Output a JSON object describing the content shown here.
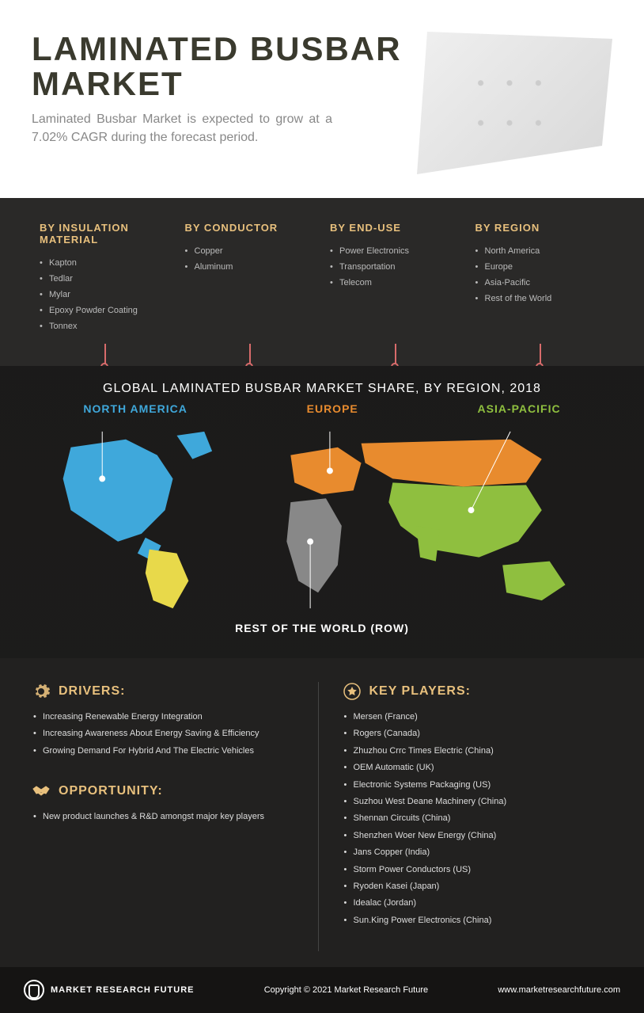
{
  "header": {
    "title_line1": "LAMINATED BUSBAR",
    "title_line2": "MARKET",
    "subtitle": "Laminated Busbar Market is expected to grow at a 7.02% CAGR during the forecast period."
  },
  "categories": [
    {
      "title": "BY INSULATION MATERIAL",
      "items": [
        "Kapton",
        "Tedlar",
        "Mylar",
        "Epoxy Powder Coating",
        "Tonnex"
      ]
    },
    {
      "title": "BY CONDUCTOR",
      "items": [
        "Copper",
        "Aluminum"
      ]
    },
    {
      "title": "BY END-USE",
      "items": [
        "Power Electronics",
        "Transportation",
        "Telecom"
      ]
    },
    {
      "title": "BY REGION",
      "items": [
        "North America",
        "Europe",
        "Asia-Pacific",
        "Rest of the World"
      ]
    }
  ],
  "map": {
    "title": "GLOBAL LAMINATED BUSBAR MARKET SHARE, BY REGION, 2018",
    "regions": {
      "na": {
        "label": "NORTH AMERICA",
        "color": "#3fa8db"
      },
      "eu": {
        "label": "EUROPE",
        "color": "#e88b2e"
      },
      "ap": {
        "label": "ASIA-PACIFIC",
        "color": "#8fbf3f"
      },
      "row": {
        "label": "REST OF THE WORLD (ROW)",
        "color": "#e8d94a"
      }
    }
  },
  "drivers": {
    "title": "DRIVERS:",
    "items": [
      "Increasing Renewable Energy Integration",
      "Increasing Awareness About Energy Saving & Efficiency",
      "Growing Demand For Hybrid And The Electric Vehicles"
    ]
  },
  "opportunity": {
    "title": "OPPORTUNITY:",
    "items": [
      "New product launches & R&D amongst major key players"
    ]
  },
  "keyplayers": {
    "title": "KEY PLAYERS:",
    "items": [
      "Mersen (France)",
      "Rogers (Canada)",
      "Zhuzhou Crrc Times Electric (China)",
      "OEM Automatic (UK)",
      "Electronic Systems Packaging (US)",
      "Suzhou West Deane Machinery (China)",
      "Shennan Circuits (China)",
      "Shenzhen Woer New Energy (China)",
      "Jans Copper (India)",
      "Storm Power Conductors (US)",
      "Ryoden Kasei (Japan)",
      "Idealac (Jordan)",
      "Sun.King Power Electronics (China)"
    ]
  },
  "footer": {
    "brand": "MARKET RESEARCH FUTURE",
    "copyright": "Copyright © 2021 Market Research Future",
    "url": "www.marketresearchfuture.com"
  },
  "colors": {
    "accent_gold": "#e8c07d",
    "stem_pink": "#d86b6b",
    "bg_dark1": "#2a2928",
    "bg_dark2": "#222120",
    "bg_dark3": "#151413"
  }
}
